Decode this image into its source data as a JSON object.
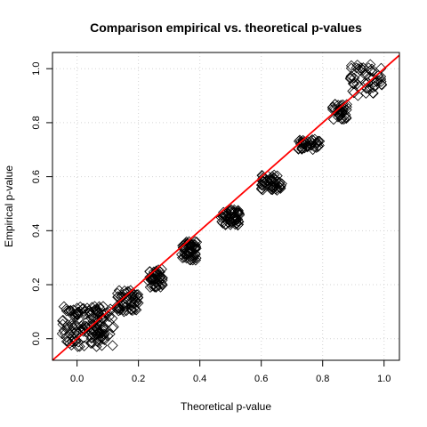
{
  "chart_data": {
    "type": "scatter",
    "title": "Comparison empirical vs. theoretical p-values",
    "xlabel": "Theoretical p-value",
    "ylabel": "Empirical p-value",
    "xlim": [
      -0.08,
      1.05
    ],
    "ylim": [
      -0.08,
      1.06
    ],
    "xticks": [
      "0.0",
      "0.2",
      "0.4",
      "0.6",
      "0.8",
      "1.0"
    ],
    "yticks": [
      "0.0",
      "0.2",
      "0.4",
      "0.6",
      "0.8",
      "1.0"
    ],
    "grid": true,
    "marker": "diamond-open",
    "reference_line": {
      "slope": 1,
      "intercept": 0,
      "color": "#ff0000"
    },
    "clusters": [
      {
        "x_range": [
          -0.05,
          0.12
        ],
        "y_range": [
          -0.03,
          0.12
        ],
        "n": 150
      },
      {
        "x_range": [
          0.13,
          0.2
        ],
        "y_range": [
          0.1,
          0.18
        ],
        "n": 55
      },
      {
        "x_range": [
          0.23,
          0.28
        ],
        "y_range": [
          0.19,
          0.26
        ],
        "n": 45
      },
      {
        "x_range": [
          0.34,
          0.39
        ],
        "y_range": [
          0.29,
          0.36
        ],
        "n": 55
      },
      {
        "x_range": [
          0.47,
          0.53
        ],
        "y_range": [
          0.42,
          0.48
        ],
        "n": 55
      },
      {
        "x_range": [
          0.6,
          0.67
        ],
        "y_range": [
          0.55,
          0.61
        ],
        "n": 50
      },
      {
        "x_range": [
          0.72,
          0.79
        ],
        "y_range": [
          0.7,
          0.74
        ],
        "n": 40
      },
      {
        "x_range": [
          0.83,
          0.88
        ],
        "y_range": [
          0.81,
          0.87
        ],
        "n": 35
      },
      {
        "x_range": [
          0.89,
          1.0
        ],
        "y_range": [
          0.9,
          1.02
        ],
        "n": 50
      }
    ]
  }
}
